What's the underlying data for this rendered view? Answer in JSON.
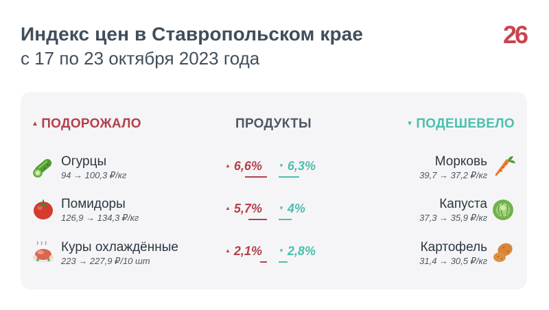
{
  "header": {
    "title": "Индекс цен в Ставропольском крае",
    "subtitle": "с 17 по 23 октября 2023 года",
    "logo_text": "26"
  },
  "columns": {
    "up": "ПОДОРОЖАЛО",
    "middle": "ПРОДУКТЫ",
    "down": "ПОДЕШЕВЕЛО"
  },
  "increased": [
    {
      "name": "Огурцы",
      "prices": "94 → 100,3 ₽/кг",
      "change": "6,6%",
      "change_value": 6.6,
      "icon": "cucumber-icon"
    },
    {
      "name": "Помидоры",
      "prices": "126,9 → 134,3 ₽/кг",
      "change": "5,7%",
      "change_value": 5.7,
      "icon": "tomato-icon"
    },
    {
      "name": "Куры охлаждённые",
      "prices": "223 → 227,9 ₽/10 шт",
      "change": "2,1%",
      "change_value": 2.1,
      "icon": "chicken-icon"
    }
  ],
  "decreased": [
    {
      "name": "Морковь",
      "prices": "39,7 → 37,2 ₽/кг",
      "change": "6,3%",
      "change_value": 6.3,
      "icon": "carrot-icon"
    },
    {
      "name": "Капуста",
      "prices": "37,3 → 35,9 ₽/кг",
      "change": "4%",
      "change_value": 4.0,
      "icon": "cabbage-icon"
    },
    {
      "name": "Картофель",
      "prices": "31,4 → 30,5 ₽/кг",
      "change": "2,8%",
      "change_value": 2.8,
      "icon": "potato-icon"
    }
  ],
  "colors": {
    "up": "#b3404a",
    "down": "#4cbfad",
    "text": "#404e5c",
    "card": "#f5f5f7",
    "logo": "#c8454f"
  }
}
